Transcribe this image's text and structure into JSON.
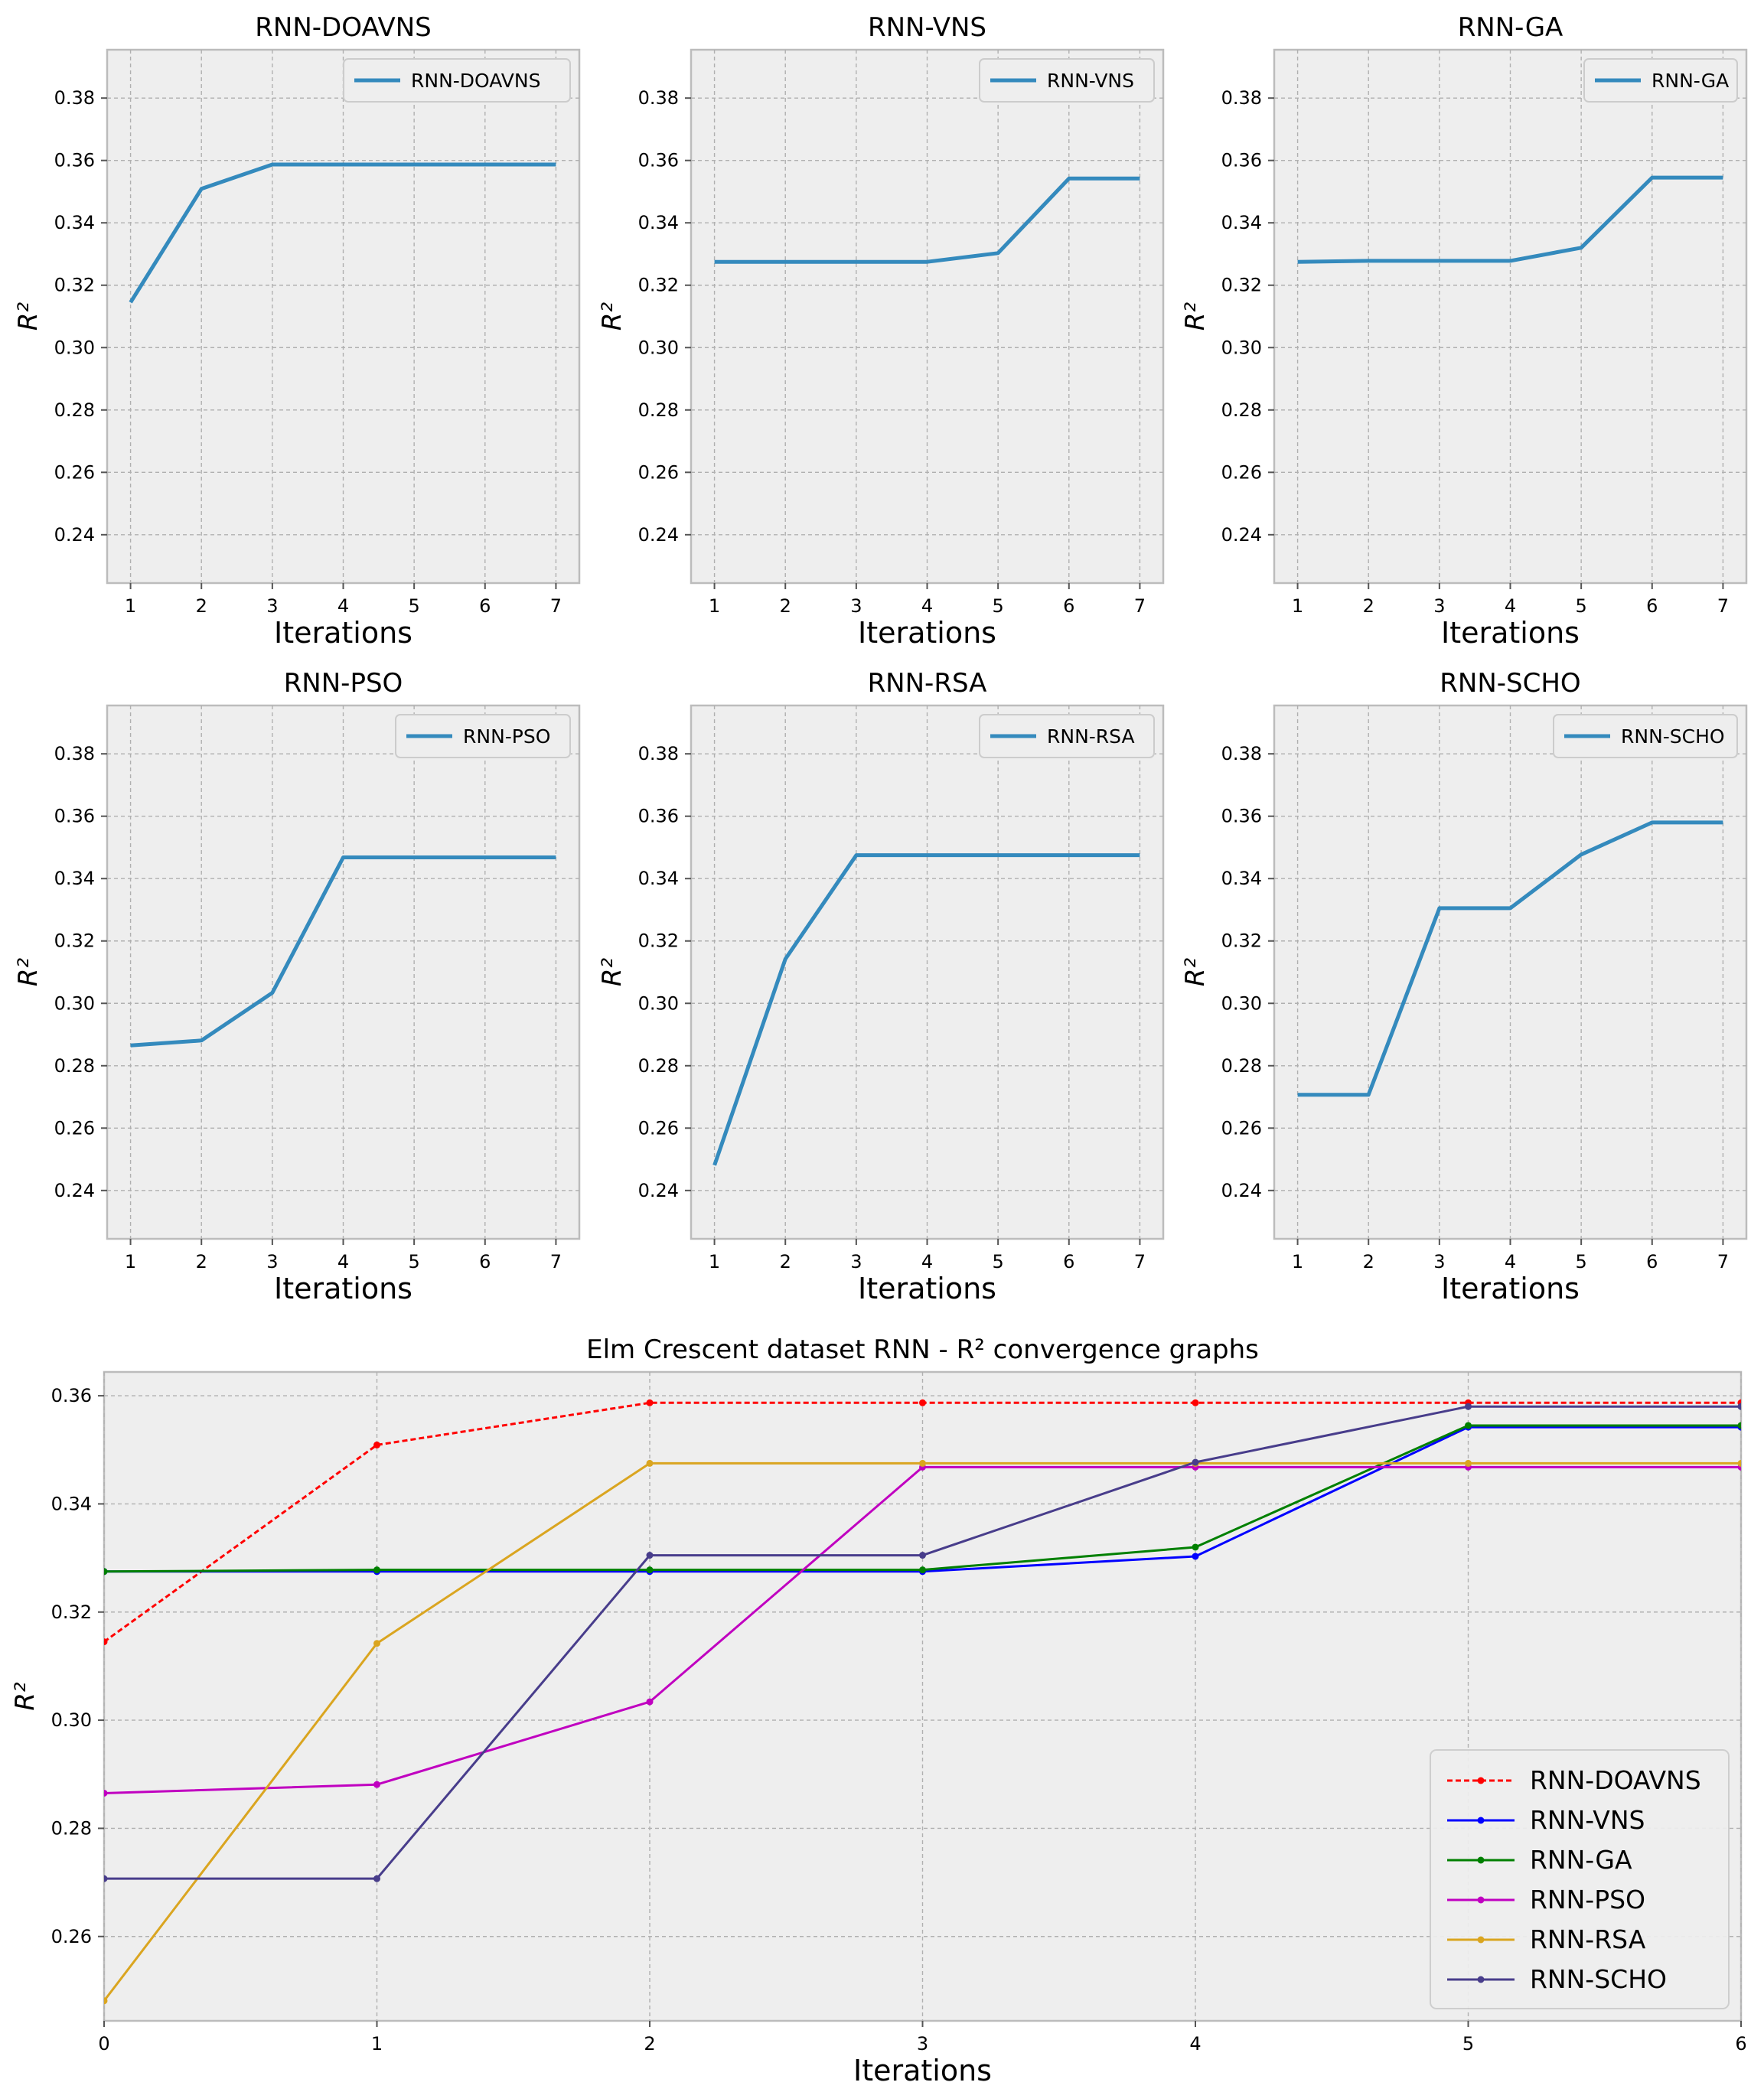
{
  "chart_data": [
    {
      "type": "line",
      "title": "RNN-DOAVNS",
      "xlabel": "Iterations",
      "ylabel": "R²",
      "x": [
        1,
        2,
        3,
        4,
        5,
        6,
        7
      ],
      "xticks": [
        "1",
        "2",
        "3",
        "4",
        "5",
        "6",
        "7"
      ],
      "xlim": [
        0.67,
        7.33
      ],
      "ylim": [
        0.2245,
        0.3955
      ],
      "yticks": [
        "0.24",
        "0.26",
        "0.28",
        "0.30",
        "0.32",
        "0.34",
        "0.36",
        "0.38"
      ],
      "series": [
        {
          "name": "RNN-DOAVNS",
          "color": "#348abd",
          "values": [
            0.3145,
            0.3509,
            0.3587,
            0.3587,
            0.3587,
            0.3587,
            0.3587
          ]
        }
      ],
      "legend": "top-right",
      "grid": true
    },
    {
      "type": "line",
      "title": "RNN-VNS",
      "xlabel": "Iterations",
      "ylabel": "R²",
      "x": [
        1,
        2,
        3,
        4,
        5,
        6,
        7
      ],
      "xticks": [
        "1",
        "2",
        "3",
        "4",
        "5",
        "6",
        "7"
      ],
      "xlim": [
        0.67,
        7.33
      ],
      "ylim": [
        0.2245,
        0.3955
      ],
      "yticks": [
        "0.24",
        "0.26",
        "0.28",
        "0.30",
        "0.32",
        "0.34",
        "0.36",
        "0.38"
      ],
      "series": [
        {
          "name": "RNN-VNS",
          "color": "#348abd",
          "values": [
            0.3275,
            0.3275,
            0.3275,
            0.3275,
            0.3303,
            0.3542,
            0.3542
          ]
        }
      ],
      "legend": "top-right",
      "grid": true
    },
    {
      "type": "line",
      "title": "RNN-GA",
      "xlabel": "Iterations",
      "ylabel": "R²",
      "x": [
        1,
        2,
        3,
        4,
        5,
        6,
        7
      ],
      "xticks": [
        "1",
        "2",
        "3",
        "4",
        "5",
        "6",
        "7"
      ],
      "xlim": [
        0.67,
        7.33
      ],
      "ylim": [
        0.2245,
        0.3955
      ],
      "yticks": [
        "0.24",
        "0.26",
        "0.28",
        "0.30",
        "0.32",
        "0.34",
        "0.36",
        "0.38"
      ],
      "series": [
        {
          "name": "RNN-GA",
          "color": "#348abd",
          "values": [
            0.3275,
            0.3278,
            0.3278,
            0.3278,
            0.332,
            0.3545,
            0.3545
          ]
        }
      ],
      "legend": "top-right",
      "grid": true
    },
    {
      "type": "line",
      "title": "RNN-PSO",
      "xlabel": "Iterations",
      "ylabel": "R²",
      "x": [
        1,
        2,
        3,
        4,
        5,
        6,
        7
      ],
      "xticks": [
        "1",
        "2",
        "3",
        "4",
        "5",
        "6",
        "7"
      ],
      "xlim": [
        0.67,
        7.33
      ],
      "ylim": [
        0.2245,
        0.3955
      ],
      "yticks": [
        "0.24",
        "0.26",
        "0.28",
        "0.30",
        "0.32",
        "0.34",
        "0.36",
        "0.38"
      ],
      "series": [
        {
          "name": "RNN-PSO",
          "color": "#348abd",
          "values": [
            0.2865,
            0.2881,
            0.3034,
            0.3468,
            0.3468,
            0.3468,
            0.3468
          ]
        }
      ],
      "legend": "top-right",
      "grid": true
    },
    {
      "type": "line",
      "title": "RNN-RSA",
      "xlabel": "Iterations",
      "ylabel": "R²",
      "x": [
        1,
        2,
        3,
        4,
        5,
        6,
        7
      ],
      "xticks": [
        "1",
        "2",
        "3",
        "4",
        "5",
        "6",
        "7"
      ],
      "xlim": [
        0.67,
        7.33
      ],
      "ylim": [
        0.2245,
        0.3955
      ],
      "yticks": [
        "0.24",
        "0.26",
        "0.28",
        "0.30",
        "0.32",
        "0.34",
        "0.36",
        "0.38"
      ],
      "series": [
        {
          "name": "RNN-RSA",
          "color": "#348abd",
          "values": [
            0.2481,
            0.3142,
            0.3475,
            0.3475,
            0.3475,
            0.3475,
            0.3475
          ]
        }
      ],
      "legend": "top-right",
      "grid": true
    },
    {
      "type": "line",
      "title": "RNN-SCHO",
      "xlabel": "Iterations",
      "ylabel": "R²",
      "x": [
        1,
        2,
        3,
        4,
        5,
        6,
        7
      ],
      "xticks": [
        "1",
        "2",
        "3",
        "4",
        "5",
        "6",
        "7"
      ],
      "xlim": [
        0.67,
        7.33
      ],
      "ylim": [
        0.2245,
        0.3955
      ],
      "yticks": [
        "0.24",
        "0.26",
        "0.28",
        "0.30",
        "0.32",
        "0.34",
        "0.36",
        "0.38"
      ],
      "series": [
        {
          "name": "RNN-SCHO",
          "color": "#348abd",
          "values": [
            0.2707,
            0.2707,
            0.3305,
            0.3305,
            0.3477,
            0.358,
            0.358
          ]
        }
      ],
      "legend": "top-right",
      "grid": true
    },
    {
      "type": "line",
      "title": "Elm Crescent dataset RNN -  R² convergence graphs",
      "xlabel": "Iterations",
      "ylabel": "R²",
      "x": [
        0,
        1,
        2,
        3,
        4,
        5,
        6
      ],
      "xticks": [
        "0",
        "1",
        "2",
        "3",
        "4",
        "5",
        "6"
      ],
      "xlim": [
        0,
        6
      ],
      "ylim": [
        0.2444,
        0.3644
      ],
      "yticks": [
        "0.26",
        "0.28",
        "0.30",
        "0.32",
        "0.34",
        "0.36"
      ],
      "series": [
        {
          "name": "RNN-DOAVNS",
          "color": "#ff0000",
          "dashed": true,
          "values": [
            0.3145,
            0.3509,
            0.3587,
            0.3587,
            0.3587,
            0.3587,
            0.3587
          ]
        },
        {
          "name": "RNN-VNS",
          "color": "#0000ff",
          "values": [
            0.3275,
            0.3275,
            0.3275,
            0.3275,
            0.3303,
            0.3542,
            0.3542
          ]
        },
        {
          "name": "RNN-GA",
          "color": "#008000",
          "values": [
            0.3275,
            0.3278,
            0.3278,
            0.3278,
            0.332,
            0.3545,
            0.3545
          ]
        },
        {
          "name": "RNN-PSO",
          "color": "#c000c0",
          "values": [
            0.2865,
            0.2881,
            0.3034,
            0.3468,
            0.3468,
            0.3468,
            0.3468
          ]
        },
        {
          "name": "RNN-RSA",
          "color": "#daa520",
          "values": [
            0.2481,
            0.3142,
            0.3475,
            0.3475,
            0.3475,
            0.3475,
            0.3475
          ]
        },
        {
          "name": "RNN-SCHO",
          "color": "#483d8b",
          "values": [
            0.2707,
            0.2707,
            0.3305,
            0.3305,
            0.3477,
            0.358,
            0.358
          ]
        }
      ],
      "legend": "lower-right",
      "grid": true
    }
  ]
}
